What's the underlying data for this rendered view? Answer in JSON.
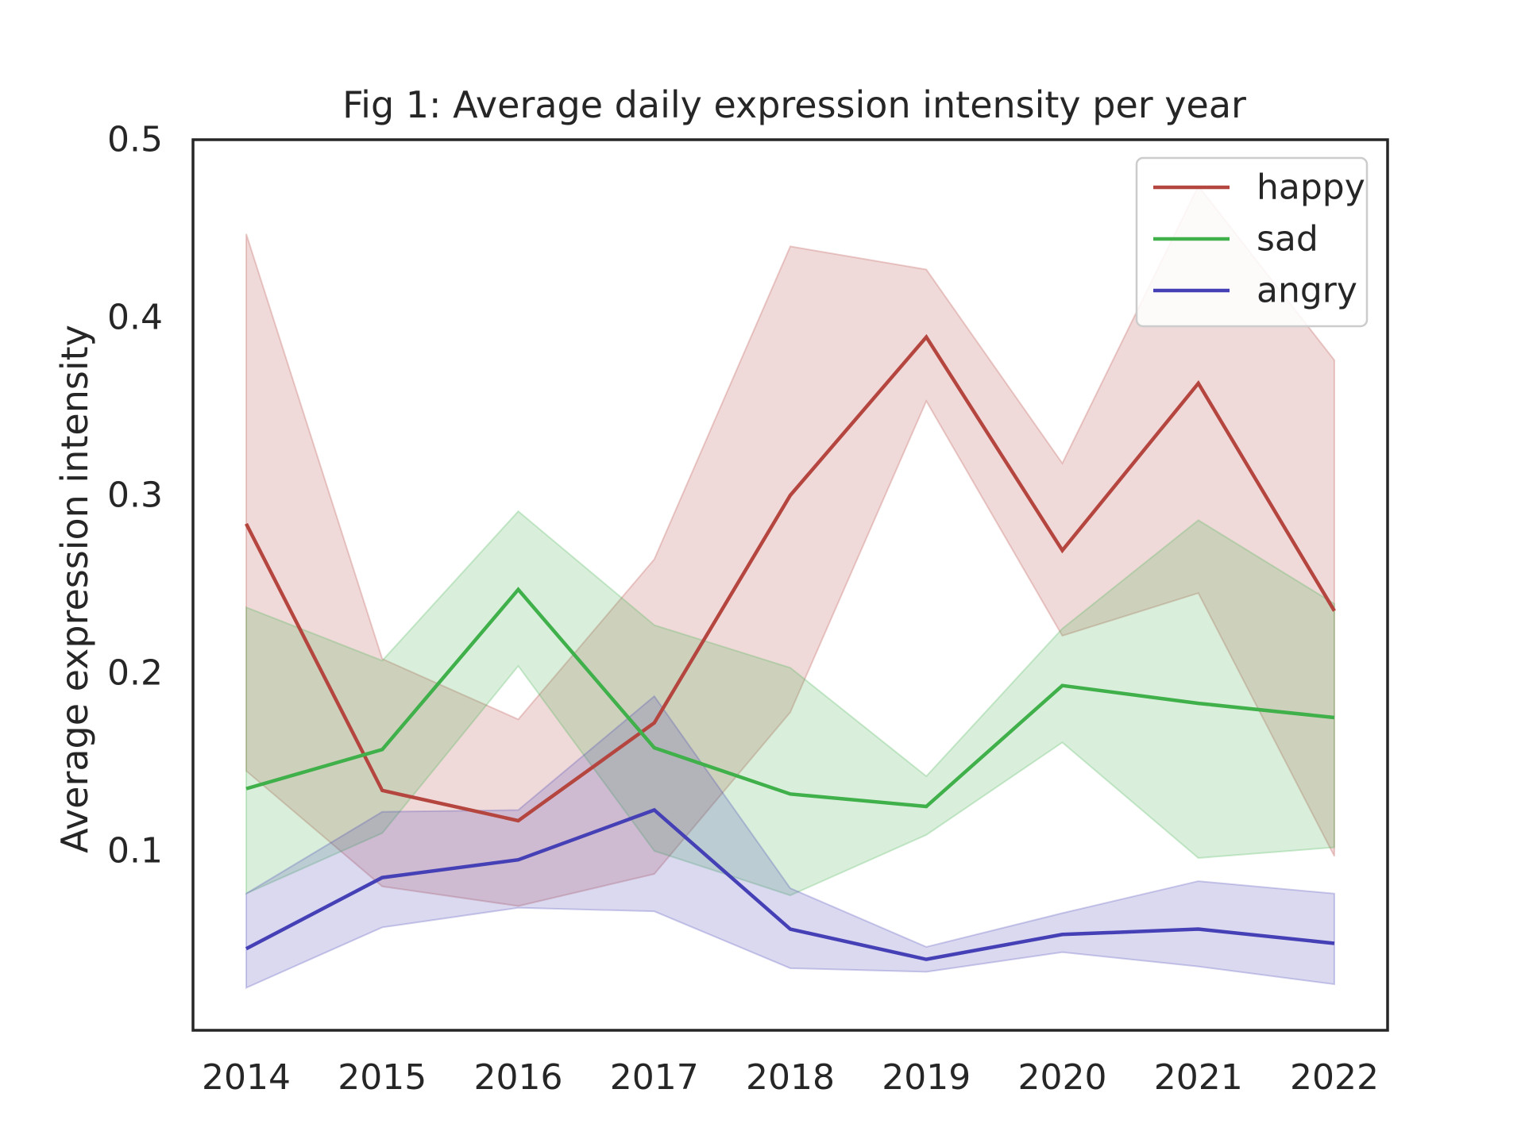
{
  "chart_data": {
    "type": "line",
    "title": "Fig 1: Average daily expression intensity per year",
    "xlabel": "",
    "ylabel": "Average expression intensity",
    "x": [
      "2014",
      "2015",
      "2016",
      "2017",
      "2018",
      "2019",
      "2020",
      "2021",
      "2022"
    ],
    "ylim": [
      0,
      0.5
    ],
    "yticks": [
      0.1,
      0.2,
      0.3,
      0.4,
      0.5
    ],
    "ytick_labels": [
      "0.1",
      "0.2",
      "0.3",
      "0.4",
      "0.5"
    ],
    "grid": false,
    "legend_position": "top-right",
    "series": [
      {
        "name": "happy",
        "color": "#b5453f",
        "values": [
          0.284,
          0.134,
          0.117,
          0.172,
          0.3,
          0.389,
          0.269,
          0.363,
          0.235
        ],
        "ci_lower": [
          0.145,
          0.08,
          0.069,
          0.087,
          0.178,
          0.353,
          0.221,
          0.245,
          0.097
        ],
        "ci_upper": [
          0.447,
          0.208,
          0.174,
          0.264,
          0.44,
          0.427,
          0.318,
          0.474,
          0.376
        ]
      },
      {
        "name": "sad",
        "color": "#40b04a",
        "values": [
          0.135,
          0.157,
          0.247,
          0.158,
          0.132,
          0.125,
          0.193,
          0.183,
          0.175
        ],
        "ci_lower": [
          0.076,
          0.11,
          0.204,
          0.1,
          0.075,
          0.109,
          0.161,
          0.096,
          0.102
        ],
        "ci_upper": [
          0.237,
          0.207,
          0.291,
          0.227,
          0.203,
          0.142,
          0.225,
          0.286,
          0.239
        ]
      },
      {
        "name": "angry",
        "color": "#4540b5",
        "values": [
          0.045,
          0.085,
          0.095,
          0.123,
          0.056,
          0.039,
          0.053,
          0.056,
          0.048
        ],
        "ci_lower": [
          0.023,
          0.057,
          0.068,
          0.066,
          0.034,
          0.032,
          0.043,
          0.035,
          0.025
        ],
        "ci_upper": [
          0.076,
          0.122,
          0.123,
          0.187,
          0.079,
          0.046,
          0.065,
          0.083,
          0.076
        ]
      }
    ]
  }
}
